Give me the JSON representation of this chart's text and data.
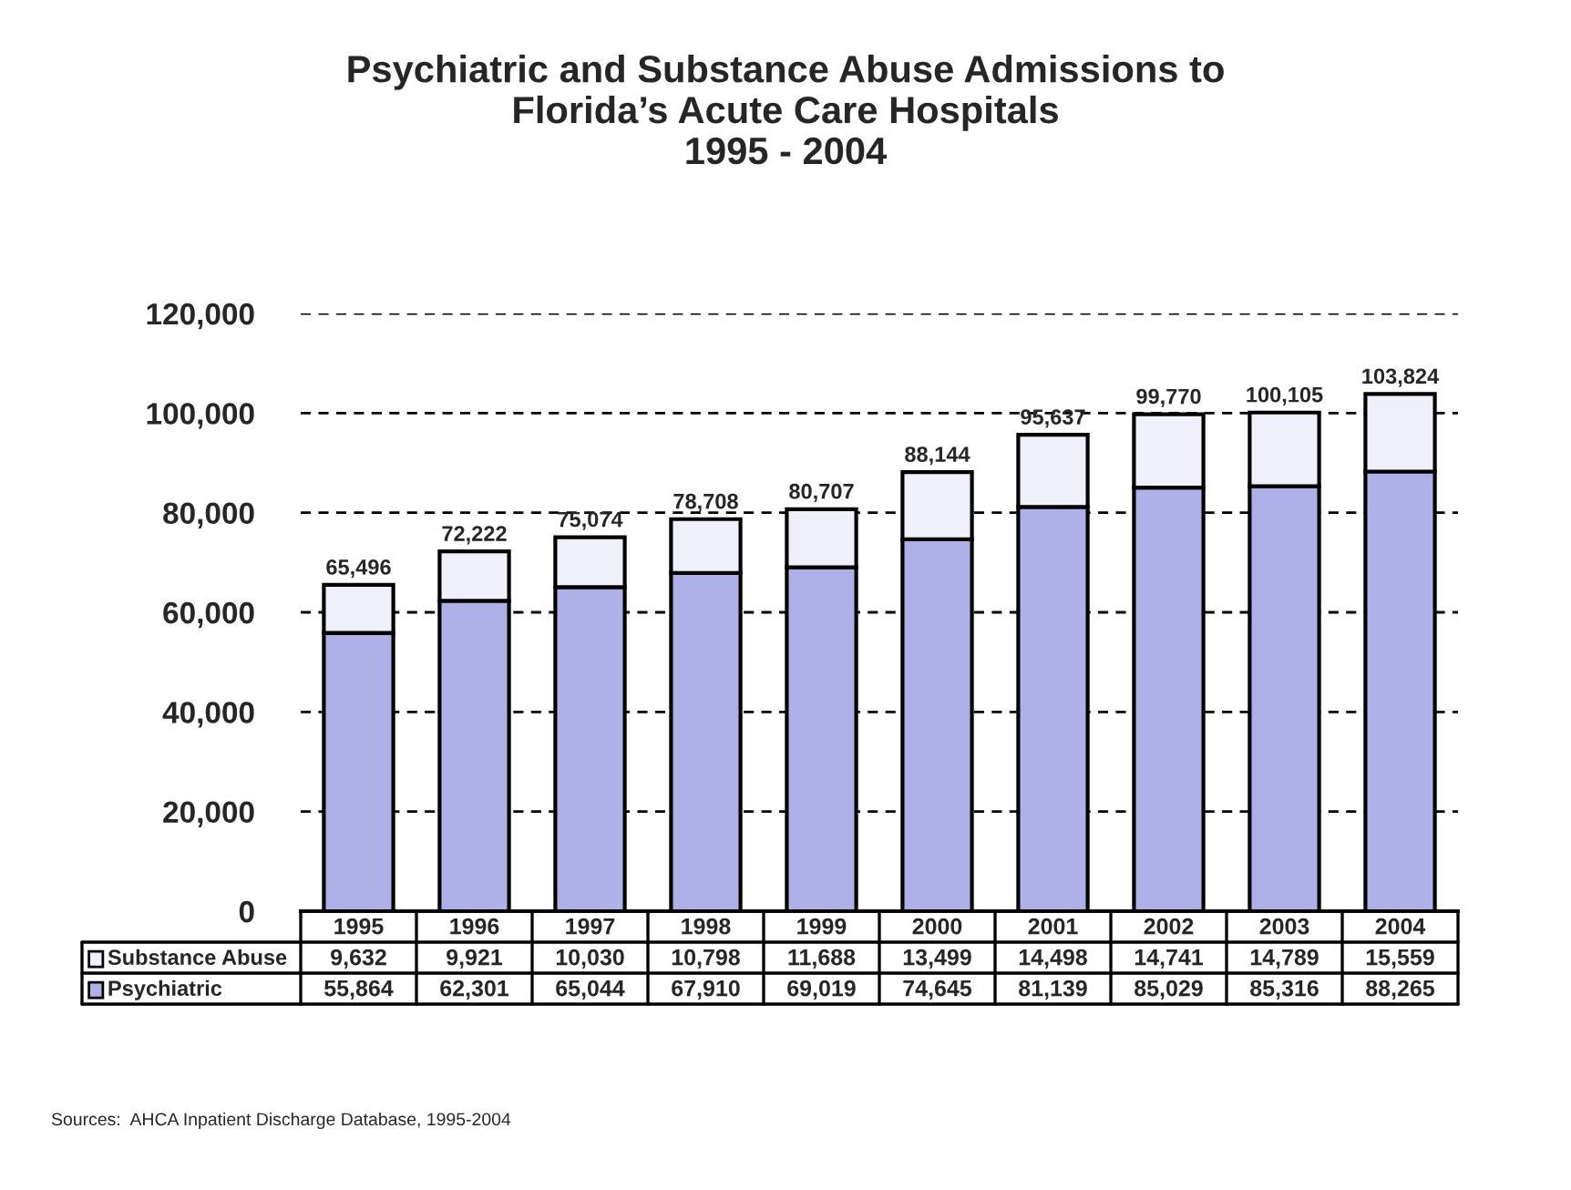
{
  "chart_data": {
    "type": "bar",
    "title": "Psychiatric and Substance Abuse Admissions to\nFlorida’s Acute Care Hospitals\n1995 - 2004",
    "categories": [
      "1995",
      "1996",
      "1997",
      "1998",
      "1999",
      "2000",
      "2001",
      "2002",
      "2003",
      "2004"
    ],
    "series": [
      {
        "name": "Psychiatric",
        "color": "#b0b0e8",
        "values": [
          55864,
          62301,
          65044,
          67910,
          69019,
          74645,
          81139,
          85029,
          85316,
          88265
        ],
        "value_labels": [
          "55,864",
          "62,301",
          "65,044",
          "67,910",
          "69,019",
          "74,645",
          "81,139",
          "85,029",
          "85,316",
          "88,265"
        ]
      },
      {
        "name": "Substance Abuse",
        "color": "#f0f0fa",
        "values": [
          9632,
          9921,
          10030,
          10798,
          11688,
          13499,
          14498,
          14741,
          14789,
          15559
        ],
        "value_labels": [
          "9,632",
          "9,921",
          "10,030",
          "10,798",
          "11,688",
          "13,499",
          "14,498",
          "14,741",
          "14,789",
          "15,559"
        ]
      }
    ],
    "stacked": true,
    "totals": [
      "65,496",
      "72,222",
      "75,074",
      "78,708",
      "80,707",
      "88,144",
      "95,637",
      "99,770",
      "100,105",
      "103,824"
    ],
    "ylim": [
      0,
      120000
    ],
    "yticks": [
      {
        "value": 0,
        "label": "0"
      },
      {
        "value": 20000,
        "label": "20,000"
      },
      {
        "value": 40000,
        "label": "40,000"
      },
      {
        "value": 60000,
        "label": "60,000"
      },
      {
        "value": 80000,
        "label": "80,000"
      },
      {
        "value": 100000,
        "label": "100,000"
      },
      {
        "value": 120000,
        "label": "120,000"
      }
    ],
    "grid": "y",
    "legend": "bottom",
    "annotations": [
      "Sources:  AHCA Inpatient Discharge Database, 1995-2004"
    ]
  }
}
